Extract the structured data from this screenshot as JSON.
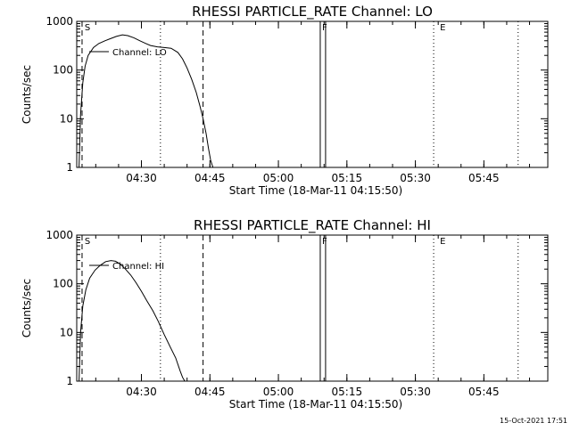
{
  "chart_data": [
    {
      "type": "line",
      "title": "RHESSI PARTICLE_RATE Channel: LO",
      "xlabel": "Start Time (18-Mar-11 04:15:50)",
      "ylabel": "Counts/sec",
      "yscale": "log",
      "ylim": [
        1,
        1000
      ],
      "xlim": [
        "04:15:50",
        "05:59:00"
      ],
      "x_ticks": [
        "04:30",
        "04:45",
        "05:00",
        "05:15",
        "05:30",
        "05:45"
      ],
      "y_ticks": [
        "1",
        "10",
        "100",
        "1000"
      ],
      "legend": {
        "position": "top-left",
        "entries": [
          "Channel: LO"
        ]
      },
      "flags": [
        "S",
        "F",
        "E"
      ],
      "series": [
        {
          "name": "Channel: LO",
          "x": [
            "04:16:20",
            "04:16:40",
            "04:17:10",
            "04:17:40",
            "04:18:20",
            "04:19:30",
            "04:20:40",
            "04:22:00",
            "04:23:10",
            "04:24:30",
            "04:25:50",
            "04:27:00",
            "04:28:20",
            "04:29:40",
            "04:31:00",
            "04:32:00",
            "04:33:30",
            "04:35:00",
            "04:36:30",
            "04:38:00",
            "04:39:00",
            "04:40:00",
            "04:41:00",
            "04:42:00",
            "04:42:50",
            "04:43:30",
            "04:44:10",
            "04:44:40",
            "04:45:10",
            "04:45:40"
          ],
          "values": [
            1,
            12,
            55,
            120,
            200,
            290,
            350,
            400,
            440,
            490,
            530,
            510,
            460,
            400,
            350,
            320,
            300,
            290,
            280,
            230,
            170,
            110,
            65,
            35,
            18,
            10,
            5,
            2.5,
            1.4,
            1
          ]
        }
      ]
    },
    {
      "type": "line",
      "title": "RHESSI PARTICLE_RATE Channel: HI",
      "xlabel": "Start Time (18-Mar-11 04:15:50)",
      "ylabel": "Counts/sec",
      "yscale": "log",
      "ylim": [
        1,
        1000
      ],
      "xlim": [
        "04:15:50",
        "05:59:00"
      ],
      "x_ticks": [
        "04:30",
        "04:45",
        "05:00",
        "05:15",
        "05:30",
        "05:45"
      ],
      "y_ticks": [
        "1",
        "10",
        "100",
        "1000"
      ],
      "legend": {
        "position": "top-left",
        "entries": [
          "Channel: HI"
        ]
      },
      "flags": [
        "S",
        "F",
        "E"
      ],
      "series": [
        {
          "name": "Channel: HI",
          "x": [
            "04:16:20",
            "04:16:40",
            "04:17:10",
            "04:17:50",
            "04:18:40",
            "04:19:50",
            "04:21:00",
            "04:22:10",
            "04:23:20",
            "04:24:20",
            "04:25:20",
            "04:26:30",
            "04:27:40",
            "04:28:50",
            "04:30:00",
            "04:31:10",
            "04:32:30",
            "04:33:40",
            "04:35:00",
            "04:36:20",
            "04:37:30",
            "04:38:30",
            "04:39:00",
            "04:39:30"
          ],
          "values": [
            1,
            10,
            35,
            75,
            130,
            190,
            240,
            285,
            300,
            290,
            255,
            200,
            150,
            105,
            70,
            45,
            28,
            17,
            9,
            5,
            3,
            1.6,
            1.2,
            1
          ]
        }
      ]
    }
  ],
  "footer": {
    "timestamp": "15-Oct-2021 17:51"
  }
}
